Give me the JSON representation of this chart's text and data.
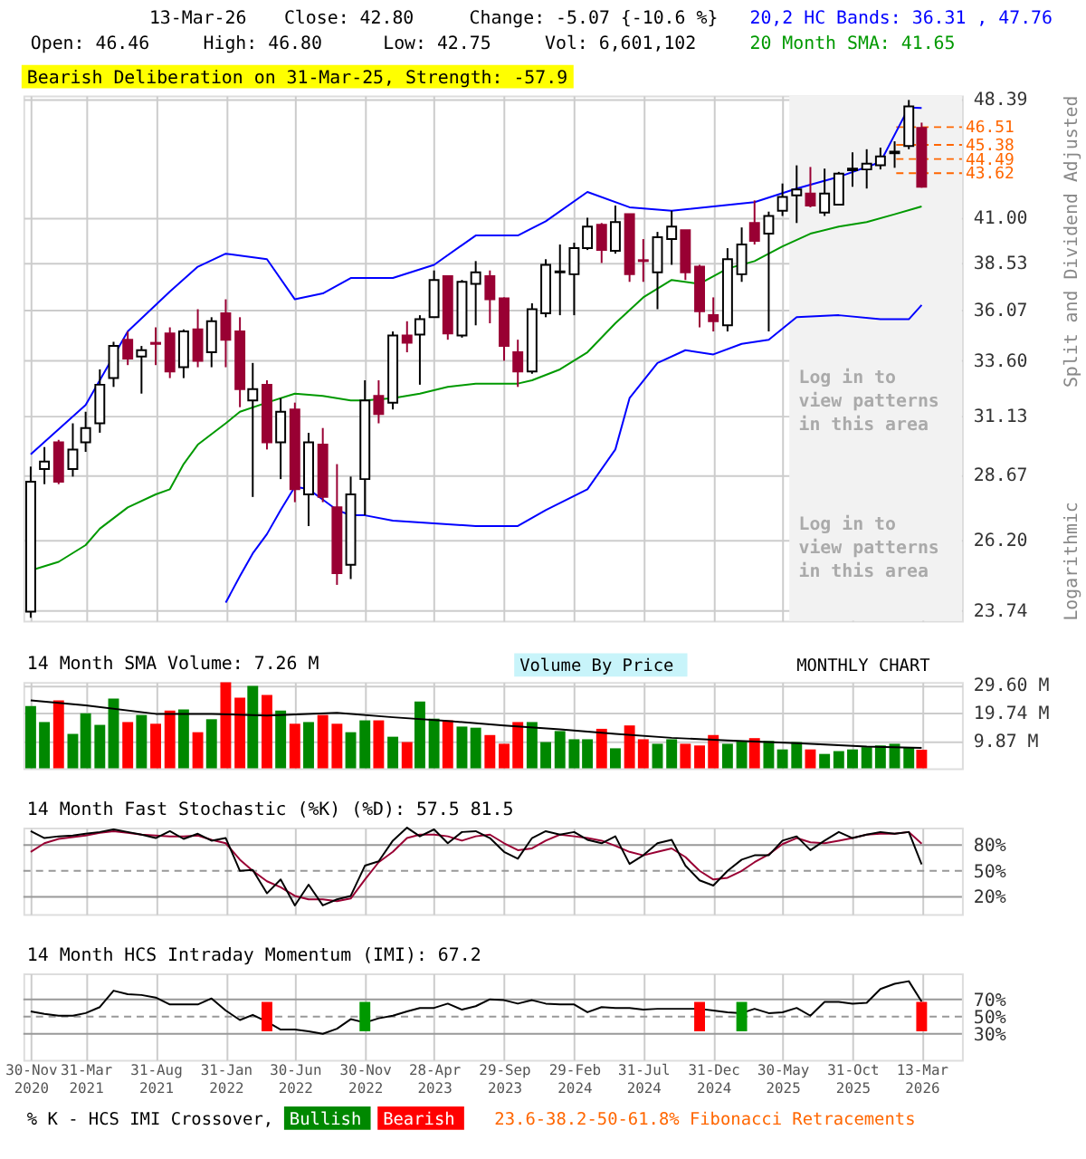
{
  "chart_data": [
    {
      "type": "candlestick",
      "title": "Bearish Deliberation on 31-Mar-25, Strength: -57.9",
      "ylabel": "Split and Dividend Adjusted",
      "annotations": [
        "13-Mar-26",
        "Close: 42.80",
        "Change: -5.07 {-10.6 %}",
        "Open: 46.46",
        "High: 46.80",
        "Low: 42.75",
        "Vol: 6,601,102",
        "20,2 HC Bands: 36.31 , 47.76",
        "20 Month SMA: 41.65",
        "Log in to view patterns in this area",
        "Log in to view patterns in this area",
        "Logarithmic"
      ],
      "x": [
        "2020-11",
        "2020-12",
        "2021-01",
        "2021-02",
        "2021-03",
        "2021-04",
        "2021-05",
        "2021-06",
        "2021-07",
        "2021-08",
        "2021-09",
        "2021-10",
        "2021-11",
        "2021-12",
        "2022-01",
        "2022-02",
        "2022-03",
        "2022-04",
        "2022-05",
        "2022-06",
        "2022-07",
        "2022-08",
        "2022-09",
        "2022-10",
        "2022-11",
        "2022-12",
        "2023-01",
        "2023-02",
        "2023-03",
        "2023-04",
        "2023-05",
        "2023-06",
        "2023-07",
        "2023-08",
        "2023-09",
        "2023-10",
        "2023-11",
        "2023-12",
        "2024-01",
        "2024-02",
        "2024-03",
        "2024-04",
        "2024-05",
        "2024-06",
        "2024-07",
        "2024-08",
        "2024-09",
        "2024-10",
        "2024-11",
        "2024-12",
        "2025-01",
        "2025-02",
        "2025-03",
        "2025-04",
        "2025-05",
        "2025-06",
        "2025-07",
        "2025-08",
        "2025-09",
        "2025-10",
        "2025-11",
        "2025-12",
        "2026-01",
        "2026-02",
        "2026-03"
      ],
      "ohlc": [
        [
          23.7,
          29.0,
          23.5,
          28.4
        ],
        [
          28.9,
          29.8,
          28.3,
          29.2
        ],
        [
          30.0,
          30.1,
          28.3,
          28.4
        ],
        [
          28.9,
          30.8,
          28.6,
          29.7
        ],
        [
          30.0,
          31.3,
          29.6,
          30.6
        ],
        [
          30.8,
          33.2,
          30.4,
          32.5
        ],
        [
          32.8,
          34.5,
          32.4,
          34.3
        ],
        [
          34.6,
          35.0,
          33.4,
          33.7
        ],
        [
          33.8,
          34.3,
          32.1,
          34.1
        ],
        [
          34.45,
          35.2,
          33.4,
          34.4
        ],
        [
          34.9,
          35.2,
          32.8,
          33.1
        ],
        [
          33.3,
          35.1,
          32.8,
          35.0
        ],
        [
          35.1,
          36.1,
          33.3,
          33.6
        ],
        [
          34.0,
          35.7,
          33.3,
          35.5
        ],
        [
          35.9,
          36.6,
          33.3,
          34.6
        ],
        [
          35.0,
          35.7,
          31.5,
          32.3
        ],
        [
          31.8,
          33.5,
          27.8,
          32.3
        ],
        [
          32.5,
          32.7,
          29.7,
          30.0
        ],
        [
          30.0,
          31.9,
          28.5,
          31.3
        ],
        [
          31.4,
          31.7,
          27.6,
          28.1
        ],
        [
          27.9,
          30.4,
          26.7,
          30.0
        ],
        [
          29.9,
          30.6,
          27.6,
          27.8
        ],
        [
          27.4,
          29.1,
          24.6,
          25.0
        ],
        [
          25.3,
          28.6,
          24.8,
          27.9
        ],
        [
          28.5,
          32.7,
          27.1,
          31.8
        ],
        [
          32.0,
          32.7,
          30.8,
          31.2
        ],
        [
          31.7,
          35.0,
          31.4,
          34.8
        ],
        [
          34.8,
          35.5,
          34.0,
          34.45
        ],
        [
          34.85,
          35.8,
          32.5,
          35.6
        ],
        [
          35.7,
          38.1,
          35.7,
          37.6
        ],
        [
          37.8,
          37.8,
          34.6,
          34.9
        ],
        [
          34.8,
          37.6,
          34.7,
          37.5
        ],
        [
          37.4,
          38.6,
          35.3,
          38.0
        ],
        [
          37.8,
          38.1,
          35.4,
          36.6
        ],
        [
          36.65,
          36.7,
          33.6,
          34.3
        ],
        [
          34.0,
          34.6,
          32.4,
          33.1
        ],
        [
          33.1,
          36.4,
          33.0,
          36.1
        ],
        [
          35.9,
          38.7,
          35.7,
          38.4
        ],
        [
          38.0,
          39.5,
          35.8,
          38.05
        ],
        [
          37.9,
          39.6,
          35.8,
          39.3
        ],
        [
          39.3,
          41.0,
          39.2,
          40.5
        ],
        [
          40.6,
          40.7,
          38.5,
          39.2
        ],
        [
          39.15,
          41.7,
          39.0,
          40.75
        ],
        [
          41.2,
          41.2,
          37.5,
          37.9
        ],
        [
          38.65,
          39.8,
          37.5,
          38.6
        ],
        [
          38.0,
          40.2,
          36.1,
          39.9
        ],
        [
          39.8,
          41.4,
          38.4,
          40.5
        ],
        [
          40.3,
          40.3,
          37.6,
          38.0
        ],
        [
          38.3,
          38.4,
          35.2,
          36.0
        ],
        [
          35.8,
          36.7,
          35.0,
          35.5
        ],
        [
          35.3,
          39.3,
          35.0,
          38.7
        ],
        [
          37.9,
          40.45,
          37.5,
          39.5
        ],
        [
          40.7,
          42.0,
          39.5,
          39.7
        ],
        [
          40.1,
          41.35,
          35.0,
          41.1
        ],
        [
          41.4,
          43.0,
          41.1,
          42.2
        ],
        [
          42.3,
          44.1,
          40.7,
          42.65
        ],
        [
          42.4,
          44.0,
          41.6,
          41.7
        ],
        [
          41.3,
          43.9,
          41.1,
          42.4
        ],
        [
          41.75,
          43.7,
          41.75,
          43.6
        ],
        [
          43.8,
          44.9,
          42.8,
          43.9
        ],
        [
          43.85,
          45.1,
          42.7,
          44.2
        ],
        [
          44.1,
          45.2,
          43.85,
          44.65
        ],
        [
          44.85,
          45.6,
          43.95,
          44.95
        ],
        [
          45.3,
          48.3,
          45.1,
          47.87
        ],
        [
          46.46,
          46.8,
          42.75,
          42.8
        ]
      ],
      "series": [
        {
          "type": "line",
          "color": "#0000ff",
          "x": [
            "2020-11",
            "2021-03",
            "2021-06",
            "2021-09",
            "2021-11",
            "2022-01",
            "2022-04",
            "2022-06",
            "2022-08",
            "2022-10",
            "2023-01",
            "2023-04",
            "2023-07",
            "2023-10",
            "2023-12",
            "2024-03",
            "2024-06",
            "2024-09",
            "2024-12",
            "2025-03",
            "2025-06",
            "2025-09",
            "2025-12",
            "2026-02",
            "2026-03"
          ],
          "values": [
            29.5,
            31.6,
            35.0,
            37.0,
            38.3,
            39.0,
            38.7,
            36.6,
            36.9,
            37.7,
            37.7,
            38.4,
            40.0,
            40.0,
            40.8,
            42.5,
            41.6,
            41.4,
            41.65,
            41.9,
            42.7,
            43.4,
            44.3,
            47.8,
            47.76
          ]
        },
        {
          "type": "line",
          "color": "#0000ff",
          "x": [
            "2022-01",
            "2022-02",
            "2022-03",
            "2022-04",
            "2022-05",
            "2022-06",
            "2022-07",
            "2022-08",
            "2022-09",
            "2022-10",
            "2022-11",
            "2023-01",
            "2023-04",
            "2023-07",
            "2023-10",
            "2023-12",
            "2024-03",
            "2024-05",
            "2024-06",
            "2024-08",
            "2024-10",
            "2024-12",
            "2025-02",
            "2025-04",
            "2025-06",
            "2025-09",
            "2025-12",
            "2026-02",
            "2026-03"
          ],
          "values": [
            24.0,
            24.9,
            25.7,
            26.4,
            27.3,
            28.2,
            28.1,
            27.7,
            27.3,
            27.1,
            27.1,
            26.9,
            26.8,
            26.7,
            26.7,
            27.3,
            28.1,
            29.7,
            31.9,
            33.5,
            34.1,
            33.9,
            34.4,
            34.6,
            35.7,
            35.8,
            35.6,
            35.6,
            36.31
          ]
        },
        {
          "type": "line",
          "color": "#009900",
          "x": [
            "2020-11",
            "2021-01",
            "2021-03",
            "2021-04",
            "2021-06",
            "2021-08",
            "2021-09",
            "2021-10",
            "2021-11",
            "2022-01",
            "2022-02",
            "2022-04",
            "2022-06",
            "2022-08",
            "2022-10",
            "2022-11",
            "2023-01",
            "2023-03",
            "2023-05",
            "2023-07",
            "2023-10",
            "2023-11",
            "2024-01",
            "2024-03",
            "2024-05",
            "2024-07",
            "2024-09",
            "2024-11",
            "2025-01",
            "2025-03",
            "2025-05",
            "2025-07",
            "2025-09",
            "2025-11",
            "2026-01",
            "2026-03"
          ],
          "values": [
            25.1,
            25.4,
            26.0,
            26.6,
            27.4,
            27.9,
            28.1,
            29.1,
            29.9,
            30.8,
            31.3,
            31.7,
            32.1,
            32.0,
            31.8,
            31.8,
            31.9,
            32.1,
            32.4,
            32.55,
            32.55,
            32.7,
            33.2,
            34.0,
            35.4,
            36.7,
            37.6,
            37.4,
            38.2,
            38.6,
            39.4,
            40.1,
            40.5,
            40.75,
            41.2,
            41.65
          ]
        }
      ],
      "log": true,
      "ylim": [
        23.4,
        48.6
      ],
      "yticks": [
        48.39,
        {
          "value": 41,
          "label": "41.00"
        },
        38.53,
        36.07,
        {
          "value": 33.6,
          "label": "33.60"
        },
        31.13,
        28.67,
        {
          "value": 26.2,
          "label": "26.20"
        },
        23.74
      ],
      "xlim": [
        "2020-10-16",
        "2026-05-28"
      ],
      "xticks": [
        {
          "value": "2020-11",
          "label": null
        },
        {
          "value": "2021-03",
          "label": null
        },
        {
          "value": "2021-08",
          "label": null
        },
        {
          "value": "2022-01",
          "label": null
        },
        {
          "value": "2022-06",
          "label": null
        },
        {
          "value": "2022-11",
          "label": null
        },
        {
          "value": "2023-04",
          "label": null
        },
        {
          "value": "2023-09",
          "label": null
        },
        {
          "value": "2024-02",
          "label": null
        },
        {
          "value": "2024-07",
          "label": null
        },
        {
          "value": "2024-12",
          "label": null
        },
        {
          "value": "2025-05",
          "label": null
        },
        {
          "value": "2025-10",
          "label": null
        },
        {
          "value": "2026-03",
          "label": null
        }
      ],
      "tick_labels": "y",
      "grid": true,
      "ref_lines": [
        {
          "axis": "y",
          "value": 46.51,
          "label": "46.51",
          "color": "#ff6600",
          "line_style": "dashed"
        },
        {
          "axis": "y",
          "value": 45.38,
          "label": "45.38",
          "color": "#ff6600",
          "line_style": "dashed"
        },
        {
          "axis": "y",
          "value": 44.49,
          "label": "44.49",
          "color": "#ff6600",
          "line_style": "dashed"
        },
        {
          "axis": "y",
          "value": 43.62,
          "label": "43.62",
          "color": "#ff6600",
          "line_style": "dashed"
        }
      ],
      "bands": [
        {
          "axis": "x",
          "from": "2025-05-16",
          "to": "2026-05-28",
          "color": "#f2f2f2"
        }
      ]
    },
    {
      "type": "bar",
      "title": "14 Month SMA Volume: 7.26 M",
      "annotations": [
        "Volume By Price",
        "MONTHLY CHART"
      ],
      "x": [
        "2020-11",
        "2020-12",
        "2021-01",
        "2021-02",
        "2021-03",
        "2021-04",
        "2021-05",
        "2021-06",
        "2021-07",
        "2021-08",
        "2021-09",
        "2021-10",
        "2021-11",
        "2021-12",
        "2022-01",
        "2022-02",
        "2022-03",
        "2022-04",
        "2022-05",
        "2022-06",
        "2022-07",
        "2022-08",
        "2022-09",
        "2022-10",
        "2022-11",
        "2022-12",
        "2023-01",
        "2023-02",
        "2023-03",
        "2023-04",
        "2023-05",
        "2023-06",
        "2023-07",
        "2023-08",
        "2023-09",
        "2023-10",
        "2023-11",
        "2023-12",
        "2024-01",
        "2024-02",
        "2024-03",
        "2024-04",
        "2024-05",
        "2024-06",
        "2024-07",
        "2024-08",
        "2024-09",
        "2024-10",
        "2024-11",
        "2024-12",
        "2025-01",
        "2025-02",
        "2025-03",
        "2025-04",
        "2025-05",
        "2025-06",
        "2025-07",
        "2025-08",
        "2025-09",
        "2025-10",
        "2025-11",
        "2025-12",
        "2026-01",
        "2026-02",
        "2026-03"
      ],
      "values": [
        22.1,
        16.4,
        24.1,
        12.2,
        19.5,
        15.4,
        24.7,
        16.4,
        18.9,
        15.8,
        20.5,
        20.9,
        12.8,
        17.4,
        30.5,
        25.0,
        29.2,
        26.0,
        20.5,
        15.8,
        16.4,
        18.9,
        15.8,
        12.8,
        17.0,
        17.0,
        11.2,
        9.3,
        23.7,
        17.6,
        17.0,
        14.8,
        14.4,
        11.8,
        8.7,
        16.4,
        16.4,
        9.3,
        13.2,
        10.3,
        10.3,
        14.0,
        7.1,
        15.2,
        10.3,
        8.7,
        10.3,
        8.7,
        8.1,
        11.8,
        8.7,
        9.7,
        10.7,
        9.7,
        6.7,
        9.3,
        6.7,
        5.1,
        6.1,
        6.7,
        7.5,
        8.1,
        8.7,
        7.5,
        6.6
      ],
      "colors": [
        "#008800",
        "#008800",
        "#ff0000",
        "#008800",
        "#008800",
        "#008800",
        "#008800",
        "#ff0000",
        "#008800",
        "#ff0000",
        "#ff0000",
        "#008800",
        "#ff0000",
        "#008800",
        "#ff0000",
        "#ff0000",
        "#008800",
        "#ff0000",
        "#008800",
        "#ff0000",
        "#008800",
        "#ff0000",
        "#ff0000",
        "#008800",
        "#008800",
        "#ff0000",
        "#008800",
        "#ff0000",
        "#008800",
        "#008800",
        "#ff0000",
        "#008800",
        "#008800",
        "#ff0000",
        "#ff0000",
        "#ff0000",
        "#008800",
        "#008800",
        "#008800",
        "#008800",
        "#008800",
        "#ff0000",
        "#008800",
        "#ff0000",
        "#ff0000",
        "#008800",
        "#008800",
        "#ff0000",
        "#ff0000",
        "#ff0000",
        "#008800",
        "#008800",
        "#ff0000",
        "#008800",
        "#008800",
        "#008800",
        "#ff0000",
        "#008800",
        "#008800",
        "#008800",
        "#008800",
        "#008800",
        "#008800",
        "#008800",
        "#ff0000"
      ],
      "series": [
        {
          "type": "line",
          "color": "#000000",
          "x": [
            "2020-11",
            "2021-03",
            "2021-08",
            "2021-12",
            "2022-04",
            "2022-09",
            "2023-01",
            "2023-05",
            "2023-09",
            "2024-01",
            "2024-05",
            "2024-09",
            "2025-01",
            "2025-06",
            "2025-11",
            "2026-03"
          ],
          "values": [
            24.1,
            22.3,
            19.3,
            19.3,
            18.7,
            19.7,
            18.1,
            16.8,
            15.2,
            13.8,
            12.2,
            10.8,
            9.9,
            8.9,
            7.7,
            7.26
          ]
        }
      ],
      "ylim": [
        0,
        30.6
      ],
      "yticks": [
        {
          "value": 9.87,
          "label": "9.87 M"
        },
        {
          "value": 19.74,
          "label": "19.74 M"
        },
        {
          "value": 29.6,
          "label": "29.60 M"
        }
      ],
      "xlim": [
        "2020-10-16",
        "2026-05-28"
      ],
      "xticks": [
        {
          "value": "2020-11",
          "label": null
        },
        {
          "value": "2021-03",
          "label": null
        },
        {
          "value": "2021-08",
          "label": null
        },
        {
          "value": "2022-01",
          "label": null
        },
        {
          "value": "2022-06",
          "label": null
        },
        {
          "value": "2022-11",
          "label": null
        },
        {
          "value": "2023-04",
          "label": null
        },
        {
          "value": "2023-09",
          "label": null
        },
        {
          "value": "2024-02",
          "label": null
        },
        {
          "value": "2024-07",
          "label": null
        },
        {
          "value": "2024-12",
          "label": null
        },
        {
          "value": "2025-05",
          "label": null
        },
        {
          "value": "2025-10",
          "label": null
        },
        {
          "value": "2026-03",
          "label": null
        }
      ],
      "tick_labels": "y",
      "grid": true
    },
    {
      "type": "line",
      "title": "14 Month Fast Stochastic (%K) (%D): 57.5  81.5",
      "x": [
        "2020-11",
        "2020-12",
        "2021-01",
        "2021-02",
        "2021-03",
        "2021-04",
        "2021-05",
        "2021-06",
        "2021-07",
        "2021-08",
        "2021-09",
        "2021-10",
        "2021-11",
        "2021-12",
        "2022-01",
        "2022-02",
        "2022-03",
        "2022-04",
        "2022-05",
        "2022-06",
        "2022-07",
        "2022-08",
        "2022-09",
        "2022-10",
        "2022-11",
        "2022-12",
        "2023-01",
        "2023-02",
        "2023-03",
        "2023-04",
        "2023-05",
        "2023-06",
        "2023-07",
        "2023-08",
        "2023-09",
        "2023-10",
        "2023-11",
        "2023-12",
        "2024-01",
        "2024-02",
        "2024-03",
        "2024-04",
        "2024-05",
        "2024-06",
        "2024-07",
        "2024-08",
        "2024-09",
        "2024-10",
        "2024-11",
        "2024-12",
        "2025-01",
        "2025-02",
        "2025-03",
        "2025-04",
        "2025-05",
        "2025-06",
        "2025-07",
        "2025-08",
        "2025-09",
        "2025-10",
        "2025-11",
        "2025-12",
        "2026-01",
        "2026-02",
        "2026-03"
      ],
      "series": [
        {
          "color": "#990033",
          "values": [
            72,
            82,
            87,
            89,
            91,
            94,
            96,
            94,
            92,
            91,
            90,
            90,
            91,
            86,
            82,
            63,
            50,
            38,
            31,
            21,
            17,
            17,
            15,
            18,
            40,
            60,
            72,
            88,
            92,
            92,
            90,
            85,
            90,
            92,
            82,
            74,
            76,
            85,
            92,
            90,
            88,
            85,
            79,
            72,
            68,
            72,
            76,
            66,
            50,
            40,
            42,
            50,
            60,
            69,
            81,
            88,
            83,
            82,
            85,
            88,
            92,
            93,
            93,
            95,
            81.5
          ]
        },
        {
          "color": "#000000",
          "values": [
            96,
            88,
            90,
            91,
            93,
            95,
            98,
            95,
            92,
            88,
            96,
            87,
            93,
            85,
            88,
            50,
            51,
            24,
            40,
            10,
            34,
            10,
            17,
            21,
            56,
            61,
            85,
            100,
            90,
            98,
            82,
            95,
            96,
            88,
            72,
            64,
            88,
            96,
            92,
            95,
            86,
            82,
            90,
            58,
            68,
            82,
            86,
            56,
            39,
            33,
            50,
            63,
            68,
            68,
            85,
            90,
            74,
            85,
            95,
            88,
            92,
            95,
            93,
            95,
            57.5
          ]
        }
      ],
      "ylim": [
        0,
        100
      ],
      "yticks": [
        {
          "value": 20,
          "label": "20%"
        },
        {
          "value": 50,
          "label": "50%"
        },
        {
          "value": 80,
          "label": "80%"
        }
      ],
      "ref_lines": [
        {
          "axis": "y",
          "value": 20,
          "color": "#999999",
          "line_style": "solid"
        },
        {
          "axis": "y",
          "value": 50,
          "color": "#999999",
          "line_style": "dashed"
        },
        {
          "axis": "y",
          "value": 80,
          "color": "#999999",
          "line_style": "solid"
        }
      ],
      "xlim": [
        "2020-10-16",
        "2026-05-28"
      ],
      "xticks": [
        {
          "value": "2020-11",
          "label": null
        },
        {
          "value": "2021-03",
          "label": null
        },
        {
          "value": "2021-08",
          "label": null
        },
        {
          "value": "2022-01",
          "label": null
        },
        {
          "value": "2022-06",
          "label": null
        },
        {
          "value": "2022-11",
          "label": null
        },
        {
          "value": "2023-04",
          "label": null
        },
        {
          "value": "2023-09",
          "label": null
        },
        {
          "value": "2024-02",
          "label": null
        },
        {
          "value": "2024-07",
          "label": null
        },
        {
          "value": "2024-12",
          "label": null
        },
        {
          "value": "2025-05",
          "label": null
        },
        {
          "value": "2025-10",
          "label": null
        },
        {
          "value": "2026-03",
          "label": null
        }
      ],
      "tick_labels": "y",
      "grid": "x"
    },
    {
      "type": "line",
      "title": "14 Month HCS Intraday Momentum (IMI): 67.2",
      "annotations": [
        "% K - HCS IMI Crossover,",
        "Bullish",
        "Bearish",
        "23.6-38.2-50-61.8% Fibonacci Retracements"
      ],
      "x": [
        "2020-11",
        "2020-12",
        "2021-01",
        "2021-02",
        "2021-03",
        "2021-04",
        "2021-05",
        "2021-06",
        "2021-07",
        "2021-08",
        "2021-09",
        "2021-10",
        "2021-11",
        "2021-12",
        "2022-01",
        "2022-02",
        "2022-03",
        "2022-04",
        "2022-05",
        "2022-06",
        "2022-07",
        "2022-08",
        "2022-09",
        "2022-10",
        "2022-11",
        "2022-12",
        "2023-01",
        "2023-02",
        "2023-03",
        "2023-04",
        "2023-05",
        "2023-06",
        "2023-07",
        "2023-08",
        "2023-09",
        "2023-10",
        "2023-11",
        "2023-12",
        "2024-01",
        "2024-02",
        "2024-03",
        "2024-04",
        "2024-05",
        "2024-06",
        "2024-07",
        "2024-08",
        "2024-09",
        "2024-10",
        "2024-11",
        "2024-12",
        "2025-01",
        "2025-02",
        "2025-03",
        "2025-04",
        "2025-05",
        "2025-06",
        "2025-07",
        "2025-08",
        "2025-09",
        "2025-10",
        "2025-11",
        "2025-12",
        "2026-01",
        "2026-02",
        "2026-03"
      ],
      "series": [
        {
          "color": "#000000",
          "values": [
            56,
            53,
            51,
            51,
            54,
            61,
            80,
            76,
            75,
            72,
            64,
            64,
            64,
            71,
            57,
            46,
            52,
            44,
            35,
            35,
            33,
            30,
            36,
            47,
            43,
            48,
            51,
            56,
            60,
            60,
            65,
            58,
            62,
            70,
            69,
            65,
            69,
            65,
            64,
            64,
            55,
            61,
            60,
            60,
            58,
            59,
            59,
            59,
            59,
            57,
            55,
            54,
            59,
            54,
            55,
            60,
            51,
            67,
            67,
            65,
            66,
            82,
            88,
            91,
            67.2
          ]
        },
        {
          "type": "bar",
          "x": [
            "2022-04",
            "2022-11",
            "2024-11",
            "2025-02",
            "2026-03"
          ],
          "base": [
            33,
            33,
            33,
            33,
            33
          ],
          "values": [
            34,
            34,
            34,
            34,
            34
          ],
          "colors": [
            "#ff0000",
            "#009900",
            "#ff0000",
            "#009900",
            "#ff0000"
          ]
        }
      ],
      "ylim": [
        0,
        100
      ],
      "yticks": [
        {
          "value": 30,
          "label": "30%"
        },
        {
          "value": 50,
          "label": "50%"
        },
        {
          "value": 70,
          "label": "70%"
        }
      ],
      "ref_lines": [
        {
          "axis": "y",
          "value": 30,
          "color": "#999999",
          "line_style": "solid"
        },
        {
          "axis": "y",
          "value": 50,
          "color": "#999999",
          "line_style": "dashed"
        },
        {
          "axis": "y",
          "value": 70,
          "color": "#999999",
          "line_style": "solid"
        }
      ],
      "xlim": [
        "2020-10-16",
        "2026-05-28"
      ],
      "xticks": [
        {
          "value": "2020-11",
          "label": "30-Nov\n2020"
        },
        {
          "value": "2021-03",
          "label": "31-Mar\n2021"
        },
        {
          "value": "2021-08",
          "label": "31-Aug\n2021"
        },
        {
          "value": "2022-01",
          "label": "31-Jan\n2022"
        },
        {
          "value": "2022-06",
          "label": "30-Jun\n2022"
        },
        {
          "value": "2022-11",
          "label": "30-Nov\n2022"
        },
        {
          "value": "2023-04",
          "label": "28-Apr\n2023"
        },
        {
          "value": "2023-09",
          "label": "29-Sep\n2023"
        },
        {
          "value": "2024-02",
          "label": "29-Feb\n2024"
        },
        {
          "value": "2024-07",
          "label": "31-Jul\n2024"
        },
        {
          "value": "2024-12",
          "label": "31-Dec\n2024"
        },
        {
          "value": "2025-05",
          "label": "30-May\n2025"
        },
        {
          "value": "2025-10",
          "label": "31-Oct\n2025"
        },
        {
          "value": "2026-03",
          "label": "13-Mar\n2026"
        }
      ],
      "grid": "x"
    }
  ]
}
